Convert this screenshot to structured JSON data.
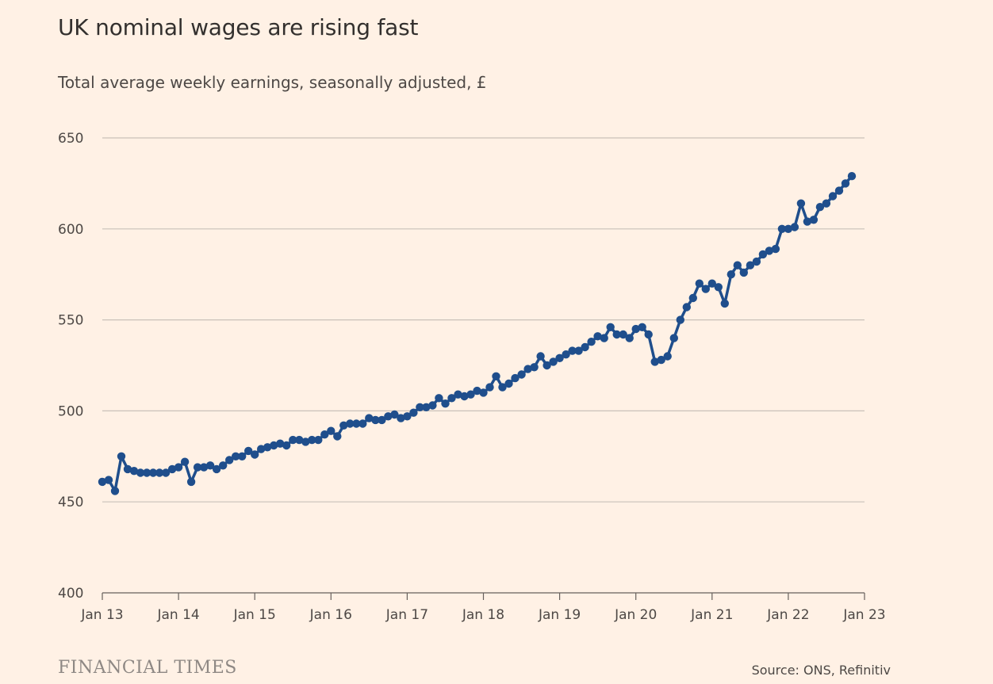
{
  "header": {
    "title": "UK nominal wages are rising fast",
    "subtitle": "Total average weekly earnings, seasonally adjusted, £"
  },
  "footer": {
    "brand": "FINANCIAL TIMES",
    "source": "Source: ONS, Refinitiv"
  },
  "colors": {
    "background": "#fff1e5",
    "line": "#1f4e8c",
    "grid": "#c9c1b9",
    "text": "#4d4845"
  },
  "chart_data": {
    "type": "line",
    "title": "UK nominal wages are rising fast",
    "subtitle": "Total average weekly earnings, seasonally adjusted, £",
    "xlabel": "",
    "ylabel": "",
    "x_range": [
      "Jan 2013",
      "Jan 2023"
    ],
    "ylim": [
      400,
      650
    ],
    "yticks": [
      400,
      450,
      500,
      550,
      600,
      650
    ],
    "xtick_labels": [
      "Jan 13",
      "Jan 14",
      "Jan 15",
      "Jan 16",
      "Jan 17",
      "Jan 18",
      "Jan 19",
      "Jan 20",
      "Jan 21",
      "Jan 22",
      "Jan 23"
    ],
    "grid": "horizontal",
    "markers": true,
    "series": [
      {
        "name": "",
        "start": "Jan 2013",
        "frequency": "monthly",
        "values": [
          461,
          462,
          456,
          475,
          468,
          467,
          466,
          466,
          466,
          466,
          466,
          468,
          469,
          472,
          461,
          469,
          469,
          470,
          468,
          470,
          473,
          475,
          475,
          478,
          476,
          479,
          480,
          481,
          482,
          481,
          484,
          484,
          483,
          484,
          484,
          487,
          489,
          486,
          492,
          493,
          493,
          493,
          496,
          495,
          495,
          497,
          498,
          496,
          497,
          499,
          502,
          502,
          503,
          507,
          504,
          507,
          509,
          508,
          509,
          511,
          510,
          513,
          519,
          513,
          515,
          518,
          520,
          523,
          524,
          530,
          525,
          527,
          529,
          531,
          533,
          533,
          535,
          538,
          541,
          540,
          546,
          542,
          542,
          540,
          545,
          546,
          542,
          527,
          528,
          530,
          540,
          550,
          557,
          562,
          570,
          567,
          570,
          568,
          559,
          575,
          580,
          576,
          580,
          582,
          586,
          588,
          589,
          600,
          600,
          601,
          614,
          604,
          605,
          612,
          614,
          618,
          621,
          625,
          629
        ]
      }
    ]
  }
}
